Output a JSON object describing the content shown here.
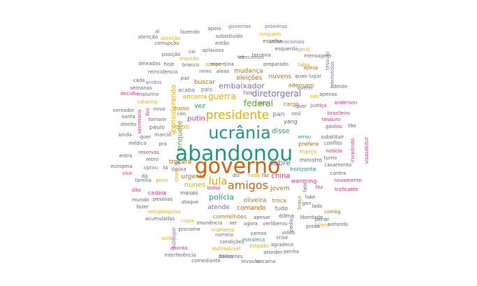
{
  "colors": {
    "green": "#1b9e77",
    "orange": "#d95f02",
    "purple": "#7570b3",
    "pink": "#e7298a",
    "lime": "#66a61e",
    "gold": "#e6ab02",
    "brown": "#a6761d",
    "gray": "#666666"
  },
  "words": [
    {
      "text": "abandonou",
      "c": "green",
      "s": 30
    },
    {
      "text": "governo",
      "c": "orange",
      "s": 30
    },
    {
      "text": "ucrânia",
      "c": "green",
      "s": 24
    },
    {
      "text": "presidente",
      "c": "gold",
      "s": 17
    },
    {
      "text": "amigos",
      "c": "orange",
      "s": 16
    },
    {
      "text": "lula",
      "c": "gold",
      "s": 15
    },
    {
      "text": "federal",
      "c": "lime",
      "s": 12
    },
    {
      "text": "diretorgeral",
      "c": "purple",
      "s": 12
    },
    {
      "text": "guerra",
      "c": "gold",
      "s": 12
    },
    {
      "text": "putin",
      "c": "pink",
      "s": 10
    },
    {
      "text": "polícia",
      "c": "green",
      "s": 11
    },
    {
      "text": "embaixador",
      "c": "purple",
      "s": 11
    },
    {
      "text": "sobre",
      "c": "purple",
      "s": 11
    },
    {
      "text": "china",
      "c": "pink",
      "s": 10
    },
    {
      "text": "disse",
      "c": "green",
      "s": 10
    },
    {
      "text": "nunes",
      "c": "gold",
      "s": 10
    },
    {
      "text": "enquete",
      "c": "lime",
      "s": 10
    },
    {
      "text": "considerando",
      "c": "gold",
      "s": 10
    },
    {
      "text": "trocará",
      "c": "orange",
      "s": 9
    },
    {
      "text": "oliveira",
      "c": "brown",
      "s": 9
    },
    {
      "text": "atende",
      "c": "purple",
      "s": 9
    },
    {
      "text": "comando",
      "c": "orange",
      "s": 9
    },
    {
      "text": "jovem",
      "c": "brown",
      "s": 9
    },
    {
      "text": "urgente",
      "c": "brown",
      "s": 9
    },
    {
      "text": "vez",
      "c": "green",
      "s": 9
    },
    {
      "text": "pan",
      "c": "purple",
      "s": 9
    },
    {
      "text": "votos",
      "c": "gold",
      "s": 9
    },
    {
      "text": "nuvens",
      "c": "brown",
      "s": 9
    },
    {
      "text": "buscar",
      "c": "brown",
      "s": 9
    },
    {
      "text": "eleições",
      "c": "orange",
      "s": 9
    },
    {
      "text": "mudança",
      "c": "brown",
      "s": 9
    },
    {
      "text": "encerra",
      "c": "gold",
      "s": 9
    },
    {
      "text": "adensam",
      "c": "brown",
      "s": 8
    },
    {
      "text": "cargo",
      "c": "brown",
      "s": 8
    },
    {
      "text": "troca",
      "c": "brown",
      "s": 8
    },
    {
      "text": "horizonte",
      "c": "green",
      "s": 8
    },
    {
      "text": "ministro",
      "c": "gray",
      "s": 8
    },
    {
      "text": "prefere",
      "c": "orange",
      "s": 8
    },
    {
      "text": "março",
      "c": "gold",
      "s": 8
    },
    {
      "text": "dilma",
      "c": "gray",
      "s": 8
    },
    {
      "text": "vai",
      "c": "gold",
      "s": 8
    },
    {
      "text": "russo",
      "c": "orange",
      "s": 8
    },
    {
      "text": "justiça",
      "c": "pink",
      "s": 7
    },
    {
      "text": "paulo",
      "c": "gray",
      "s": 8
    },
    {
      "text": "deixa",
      "c": "purple",
      "s": 8
    },
    {
      "text": "meses",
      "c": "gray",
      "s": 8
    },
    {
      "text": "cadeia",
      "c": "pink",
      "s": 8
    },
    {
      "text": "commilhões",
      "c": "brown",
      "s": 8
    },
    {
      "text": "yang",
      "c": "gray",
      "s": 8
    },
    {
      "text": "pais",
      "c": "purple",
      "s": 8
    },
    {
      "text": "tudo",
      "c": "gray",
      "s": 8
    },
    {
      "text": "wanming",
      "c": "pink",
      "s": 8
    },
    {
      "text": "acaba",
      "c": "purple",
      "s": 8
    },
    {
      "text": "pessoas",
      "c": "gray",
      "s": 7
    },
    {
      "text": "atenção",
      "c": "gray",
      "s": 7
    },
    {
      "text": "notícia",
      "c": "pink",
      "s": 7
    },
    {
      "text": "invadindo",
      "c": "pink",
      "s": 7
    },
    {
      "text": "visasebitur",
      "c": "pink",
      "s": 7
    },
    {
      "text": "substituir",
      "c": "gray",
      "s": 7
    },
    {
      "text": "conflito",
      "c": "gray",
      "s": 7
    },
    {
      "text": "turno",
      "c": "gray",
      "s": 7
    },
    {
      "text": "casamento",
      "c": "gray",
      "s": 7
    },
    {
      "text": "novamente",
      "c": "pink",
      "s": 7
    },
    {
      "text": "traficante",
      "c": "pink",
      "s": 7
    },
    {
      "text": "fez",
      "c": "pink",
      "s": 7
    },
    {
      "text": "comkg",
      "c": "brown",
      "s": 7
    },
    {
      "text": "lado",
      "c": "gray",
      "s": 7
    },
    {
      "text": "contra",
      "c": "gray",
      "s": 7
    },
    {
      "text": "rmil",
      "c": "gray",
      "s": 7
    },
    {
      "text": "tesouro",
      "c": "pink",
      "s": 7
    },
    {
      "text": "brasileiro",
      "c": "pink",
      "s": 7
    },
    {
      "text": "tão",
      "c": "gray",
      "s": 7
    },
    {
      "text": "gastou",
      "c": "pink",
      "s": 7
    },
    {
      "text": "anderson",
      "c": "pink",
      "s": 7
    },
    {
      "text": "apenas",
      "c": "gray",
      "s": 7
    },
    {
      "text": "admite",
      "c": "gray",
      "s": 7
    },
    {
      "text": "demitidos",
      "c": "purple",
      "s": 7
    },
    {
      "text": "lugar",
      "c": "green",
      "s": 7
    },
    {
      "text": "apesp",
      "c": "brown",
      "s": 7
    },
    {
      "text": "falsa",
      "c": "gold",
      "s": 7
    },
    {
      "text": "quer",
      "c": "gray",
      "s": 7
    },
    {
      "text": "mensagem",
      "c": "gray",
      "s": 7
    },
    {
      "text": "tesouro",
      "c": "purple",
      "s": 7
    },
    {
      "text": "quao",
      "c": "gray",
      "s": 7
    },
    {
      "text": "querer",
      "c": "purple",
      "s": 7
    },
    {
      "text": "sob",
      "c": "gold",
      "s": 7
    },
    {
      "text": "errou",
      "c": "green",
      "s": 7
    },
    {
      "text": "fake",
      "c": "gray",
      "s": 7
    },
    {
      "text": "gen",
      "c": "gray",
      "s": 7
    },
    {
      "text": "perde",
      "c": "gray",
      "s": 7
    },
    {
      "text": "liberdade",
      "c": "gray",
      "s": 7
    },
    {
      "text": "liderar",
      "c": "gold",
      "s": 7
    },
    {
      "text": "notando",
      "c": "gray",
      "s": 7
    },
    {
      "text": "fato",
      "c": "gray",
      "s": 7
    },
    {
      "text": "braço",
      "c": "brown",
      "s": 7
    },
    {
      "text": "preso",
      "c": "gray",
      "s": 7
    },
    {
      "text": "vídeo",
      "c": "gray",
      "s": 7
    },
    {
      "text": "pediu",
      "c": "gray",
      "s": 7
    },
    {
      "text": "crise",
      "c": "gray",
      "s": 7
    },
    {
      "text": "agradece",
      "c": "gray",
      "s": 7
    },
    {
      "text": "penha",
      "c": "gray",
      "s": 7
    },
    {
      "text": "atender",
      "c": "gray",
      "s": 7
    },
    {
      "text": "estadão",
      "c": "gold",
      "s": 7
    },
    {
      "text": "estraleca",
      "c": "green",
      "s": 7
    },
    {
      "text": "vamos",
      "c": "gray",
      "s": 7
    },
    {
      "text": "agora",
      "c": "gray",
      "s": 7
    },
    {
      "text": "verliberou",
      "c": "gray",
      "s": 7
    },
    {
      "text": "ser",
      "c": "gray",
      "s": 7
    },
    {
      "text": "apesar",
      "c": "gray",
      "s": 7
    },
    {
      "text": "nomeia",
      "c": "purple",
      "s": 7
    },
    {
      "text": "condições",
      "c": "gray",
      "s": 7
    },
    {
      "text": "indissolúvel",
      "c": "gold",
      "s": 7
    },
    {
      "text": "diferentes",
      "c": "gray",
      "s": 7
    },
    {
      "text": "invasão",
      "c": "gray",
      "s": 7
    },
    {
      "text": "cocaína",
      "c": "gray",
      "s": 7
    },
    {
      "text": "comediante",
      "c": "gray",
      "s": 7
    },
    {
      "text": "todos",
      "c": "gray",
      "s": 7
    },
    {
      "text": "interferência",
      "c": "gray",
      "s": 7
    },
    {
      "text": "aponta",
      "c": "pink",
      "s": 7
    },
    {
      "text": "união",
      "c": "gold",
      "s": 7
    },
    {
      "text": "subjugar",
      "c": "purple",
      "s": 7
    },
    {
      "text": "pronome",
      "c": "gray",
      "s": 7
    },
    {
      "text": "imunência",
      "c": "gray",
      "s": 7
    },
    {
      "text": "inúmeros",
      "c": "gold",
      "s": 7
    },
    {
      "text": "culpa",
      "c": "gold",
      "s": 7
    },
    {
      "text": "acumuladas",
      "c": "gray",
      "s": 7
    },
    {
      "text": "votopesquisa",
      "c": "gold",
      "s": 7
    },
    {
      "text": "fazer",
      "c": "gray",
      "s": 7
    },
    {
      "text": "ataque",
      "c": "gray",
      "s": 7
    },
    {
      "text": "mundo",
      "c": "gray",
      "s": 7
    },
    {
      "text": "dão",
      "c": "pink",
      "s": 7
    },
    {
      "text": "família",
      "c": "gray",
      "s": 7
    },
    {
      "text": "povo",
      "c": "gold",
      "s": 7
    },
    {
      "text": "bolso",
      "c": "pink",
      "s": 7
    },
    {
      "text": "dá",
      "c": "gray",
      "s": 7
    },
    {
      "text": "diz",
      "c": "gray",
      "s": 7
    },
    {
      "text": "nada",
      "c": "gold",
      "s": 7
    },
    {
      "text": "faz",
      "c": "gray",
      "s": 7
    },
    {
      "text": "direto",
      "c": "gold",
      "s": 7
    },
    {
      "text": "stf",
      "c": "gray",
      "s": 7
    },
    {
      "text": "optou",
      "c": "purple",
      "s": 7
    },
    {
      "text": "ta",
      "c": "pink",
      "s": 7
    },
    {
      "text": "moro",
      "c": "gray",
      "s": 7
    },
    {
      "text": "reservas",
      "c": "pink",
      "s": 7
    },
    {
      "text": "europeia",
      "c": "gray",
      "s": 7
    },
    {
      "text": "vice",
      "c": "pink",
      "s": 7
    },
    {
      "text": "entra",
      "c": "gray",
      "s": 7
    },
    {
      "text": "médico",
      "c": "gray",
      "s": 7
    },
    {
      "text": "pra",
      "c": "gray",
      "s": 7
    },
    {
      "text": "quer",
      "c": "gray",
      "s": 7
    },
    {
      "text": "ainda",
      "c": "gray",
      "s": 7
    },
    {
      "text": "direito",
      "c": "gray",
      "s": 7
    },
    {
      "text": "tornam",
      "c": "gray",
      "s": 7
    },
    {
      "text": "marcio",
      "c": "gray",
      "s": 7
    },
    {
      "text": "santa",
      "c": "gray",
      "s": 7
    },
    {
      "text": "vereador",
      "c": "gray",
      "s": 7
    },
    {
      "text": "secretário",
      "c": "pink",
      "s": 7
    },
    {
      "text": "fim",
      "c": "pink",
      "s": 7
    },
    {
      "text": "novo",
      "c": "gray",
      "s": 7
    },
    {
      "text": "catarina",
      "c": "gold",
      "s": 7
    },
    {
      "text": "decidiu",
      "c": "pink",
      "s": 7
    },
    {
      "text": "maiurino",
      "c": "gray",
      "s": 7
    },
    {
      "text": "semanas",
      "c": "gray",
      "s": 7
    },
    {
      "text": "anidos",
      "c": "purple",
      "s": 7
    },
    {
      "text": "cada",
      "c": "gray",
      "s": 7
    },
    {
      "text": "reincidencia",
      "c": "gray",
      "s": 7
    },
    {
      "text": "ceo",
      "c": "gray",
      "s": 7
    },
    {
      "text": "deixadas",
      "c": "gray",
      "s": 7
    },
    {
      "text": "hoje",
      "c": "gray",
      "s": 7
    },
    {
      "text": "posição",
      "c": "gray",
      "s": 7
    },
    {
      "text": "corrupção",
      "c": "gray",
      "s": 7
    },
    {
      "text": "fazendo",
      "c": "gray",
      "s": 7
    },
    {
      "text": "atenção",
      "c": "gold",
      "s": 7
    },
    {
      "text": "ai",
      "c": "gray",
      "s": 7
    },
    {
      "text": "cai",
      "c": "gray",
      "s": 7
    },
    {
      "text": "mourão",
      "c": "gold",
      "s": 7
    },
    {
      "text": "branco",
      "c": "gray",
      "s": 7
    },
    {
      "text": "apoiar",
      "c": "gold",
      "s": 7
    },
    {
      "text": "paz",
      "c": "gray",
      "s": 7
    },
    {
      "text": "news",
      "c": "purple",
      "s": 7
    },
    {
      "text": "aleas",
      "c": "gray",
      "s": 7
    },
    {
      "text": "repentina",
      "c": "gray",
      "s": 7
    },
    {
      "text": "preparado",
      "c": "gray",
      "s": 7
    },
    {
      "text": "aplausos",
      "c": "gray",
      "s": 7
    },
    {
      "text": "então",
      "c": "gray",
      "s": 7
    },
    {
      "text": "checamos",
      "c": "purple",
      "s": 7
    },
    {
      "text": "ter",
      "c": "gray",
      "s": 7
    },
    {
      "text": "terceira",
      "c": "gray",
      "s": 7
    },
    {
      "text": "esquerda",
      "c": "gray",
      "s": 7
    },
    {
      "text": "geral",
      "c": "gold",
      "s": 7
    },
    {
      "text": "internacionais",
      "c": "purple",
      "s": 7
    },
    {
      "text": "espalha",
      "c": "gray",
      "s": 7
    },
    {
      "text": "ninguém",
      "c": "gold",
      "s": 7
    },
    {
      "text": "substituído",
      "c": "gray",
      "s": 7
    },
    {
      "text": "apoio",
      "c": "gray",
      "s": 7
    },
    {
      "text": "governos",
      "c": "purple",
      "s": 7
    },
    {
      "text": "próximas",
      "c": "purple",
      "s": 7
    },
    {
      "text": "fala",
      "c": "gray",
      "s": 7
    },
    {
      "text": "oito",
      "c": "gray",
      "s": 7
    }
  ]
}
